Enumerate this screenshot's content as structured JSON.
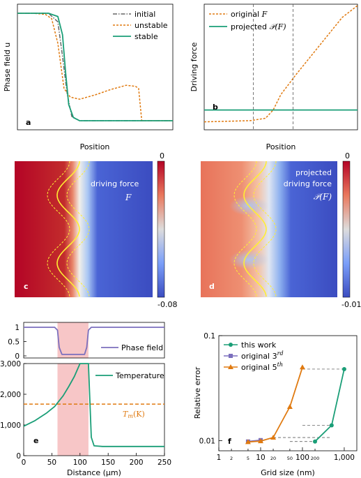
{
  "colors": {
    "green": "#1a9e77",
    "orange": "#e07a10",
    "gray": "#666666",
    "purple": "#7b6fbd",
    "yellow": "#ffee33",
    "pink": "#f7c6c7",
    "cmap_red": "#b40426",
    "cmap_white": "#f2f2f2",
    "cmap_blue": "#3b4cc0"
  },
  "chart_data": [
    {
      "panel": "a",
      "type": "line",
      "xlabel": "Position",
      "ylabel": "Phase field u",
      "legend_position": "top-right",
      "series": [
        {
          "name": "initial",
          "style": "dash-dot",
          "color": "#666666",
          "x": [
            0,
            0.1,
            0.2,
            0.26,
            0.29,
            0.32,
            0.35,
            0.4,
            0.6,
            1.0
          ],
          "y": [
            1,
            1,
            1,
            0.92,
            0.6,
            0.25,
            0.04,
            0,
            0,
            0
          ]
        },
        {
          "name": "unstable",
          "style": "dashed",
          "color": "#e07a10",
          "x": [
            0,
            0.1,
            0.18,
            0.22,
            0.26,
            0.3,
            0.34,
            0.4,
            0.5,
            0.6,
            0.7,
            0.76,
            0.78,
            0.8,
            1.0
          ],
          "y": [
            1,
            1,
            0.99,
            0.95,
            0.72,
            0.3,
            0.22,
            0.2,
            0.24,
            0.29,
            0.33,
            0.32,
            0.3,
            0,
            0
          ]
        },
        {
          "name": "stable",
          "style": "solid",
          "color": "#1a9e77",
          "x": [
            0,
            0.1,
            0.2,
            0.26,
            0.29,
            0.31,
            0.33,
            0.36,
            0.4,
            0.6,
            1.0
          ],
          "y": [
            1,
            1,
            1,
            0.97,
            0.8,
            0.45,
            0.15,
            0.03,
            0,
            0,
            0
          ]
        }
      ]
    },
    {
      "panel": "b",
      "type": "line",
      "xlabel": "Position",
      "ylabel": "Driving force",
      "legend_position": "top-left",
      "vlines": [
        0.32,
        0.58
      ],
      "series": [
        {
          "name": "original",
          "name_symbol": "F",
          "style": "dashed",
          "color": "#e07a10",
          "x": [
            0,
            0.3,
            0.4,
            0.45,
            0.5,
            0.6,
            0.7,
            0.8,
            0.9,
            1.0
          ],
          "y": [
            0.02,
            0.03,
            0.05,
            0.12,
            0.25,
            0.42,
            0.58,
            0.74,
            0.9,
            1.0
          ]
        },
        {
          "name": "projected",
          "name_symbol": "𝒫(F)",
          "style": "solid",
          "color": "#1a9e77",
          "x": [
            0,
            1
          ],
          "y": [
            0.12,
            0.12
          ]
        }
      ]
    },
    {
      "panel": "c",
      "type": "heatmap",
      "label": "driving force",
      "label_symbol": "F",
      "colorbar_ticks": [
        "0",
        "-0.08"
      ]
    },
    {
      "panel": "d",
      "type": "heatmap",
      "label_line1": "projected",
      "label_line2": "driving force",
      "label_symbol": "𝒫(F)",
      "colorbar_ticks": [
        "0",
        "-0.01"
      ]
    },
    {
      "panel": "e_top",
      "type": "line",
      "xlim": [
        0,
        250
      ],
      "ylim": [
        0,
        1
      ],
      "yticks": [
        "0",
        "0.5",
        "1"
      ],
      "shaded_x": [
        60,
        115
      ],
      "series": [
        {
          "name": "Phase field",
          "color": "#7b6fbd",
          "x": [
            0,
            55,
            60,
            63,
            68,
            108,
            112,
            115,
            120,
            250
          ],
          "y": [
            1,
            1,
            0.9,
            0.3,
            0.05,
            0.05,
            0.3,
            0.9,
            1,
            1
          ]
        }
      ]
    },
    {
      "panel": "e",
      "type": "line",
      "xlabel": "Distance (μm)",
      "xlim": [
        0,
        250
      ],
      "ylim": [
        0,
        3000
      ],
      "xticks": [
        "0",
        "50",
        "100",
        "150",
        "200",
        "250"
      ],
      "yticks": [
        "0",
        "1,000",
        "2,000",
        "3,000"
      ],
      "shaded_x": [
        60,
        115
      ],
      "hline": {
        "label": "T_m(K)",
        "value": 1680
      },
      "series": [
        {
          "name": "Temperature",
          "color": "#1a9e77",
          "x": [
            0,
            20,
            40,
            55,
            70,
            80,
            90,
            100,
            115,
            120,
            125,
            140,
            250
          ],
          "y": [
            960,
            1140,
            1380,
            1600,
            1950,
            2250,
            2580,
            3000,
            3000,
            600,
            320,
            300,
            300
          ]
        }
      ]
    },
    {
      "panel": "f",
      "type": "line",
      "xlabel": "Grid size (nm)",
      "ylabel": "Relative error",
      "xscale": "log",
      "yscale": "log",
      "xlim": [
        1,
        2000
      ],
      "ylim": [
        0.008,
        0.1
      ],
      "xticks": [
        "1",
        "2",
        "5",
        "10",
        "20",
        "50",
        "100",
        "200",
        "1,000"
      ],
      "yticks": [
        "0.01",
        "0.1"
      ],
      "legend_position": "top-left",
      "series": [
        {
          "name": "this work",
          "color": "#1a9e77",
          "marker": "circle",
          "x": [
            200,
            500,
            1000
          ],
          "y": [
            0.0098,
            0.014,
            0.048
          ]
        },
        {
          "name": "original 3",
          "superscript": "rd",
          "color": "#7b6fbd",
          "marker": "square",
          "x": [
            5,
            10
          ],
          "y": [
            0.0098,
            0.0101
          ]
        },
        {
          "name": "original 5",
          "superscript": "th",
          "color": "#e07a10",
          "marker": "triangle",
          "x": [
            5,
            10,
            20,
            50,
            100
          ],
          "y": [
            0.0097,
            0.0099,
            0.0107,
            0.021,
            0.05
          ]
        }
      ]
    }
  ]
}
